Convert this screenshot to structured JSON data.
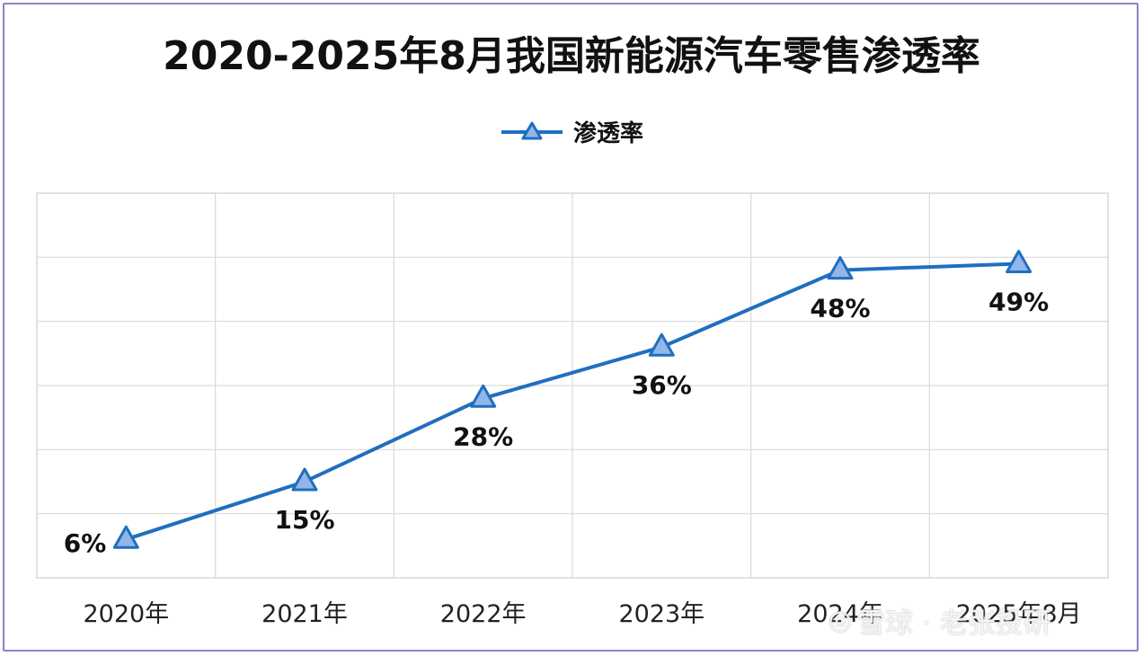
{
  "chart_data": {
    "type": "line",
    "title": "2020-2025年8月我国新能源汽车零售渗透率",
    "categories": [
      "2020年",
      "2021年",
      "2022年",
      "2023年",
      "2024年",
      "2025年8月"
    ],
    "series": [
      {
        "name": "渗透率",
        "values": [
          6,
          15,
          28,
          36,
          48,
          49
        ],
        "labels": [
          "6%",
          "15%",
          "28%",
          "36%",
          "48%",
          "49%"
        ]
      }
    ],
    "ylim": [
      0,
      60
    ],
    "grid": true,
    "legend_position": "top-center",
    "marker": "triangle",
    "colors": {
      "line": "#1f6fc0",
      "marker_fill": "#93b6e8",
      "grid": "#d9d9d9"
    }
  },
  "watermark": {
    "text": "雪球 · 老张投研",
    "icon": "snowball-logo-icon"
  }
}
